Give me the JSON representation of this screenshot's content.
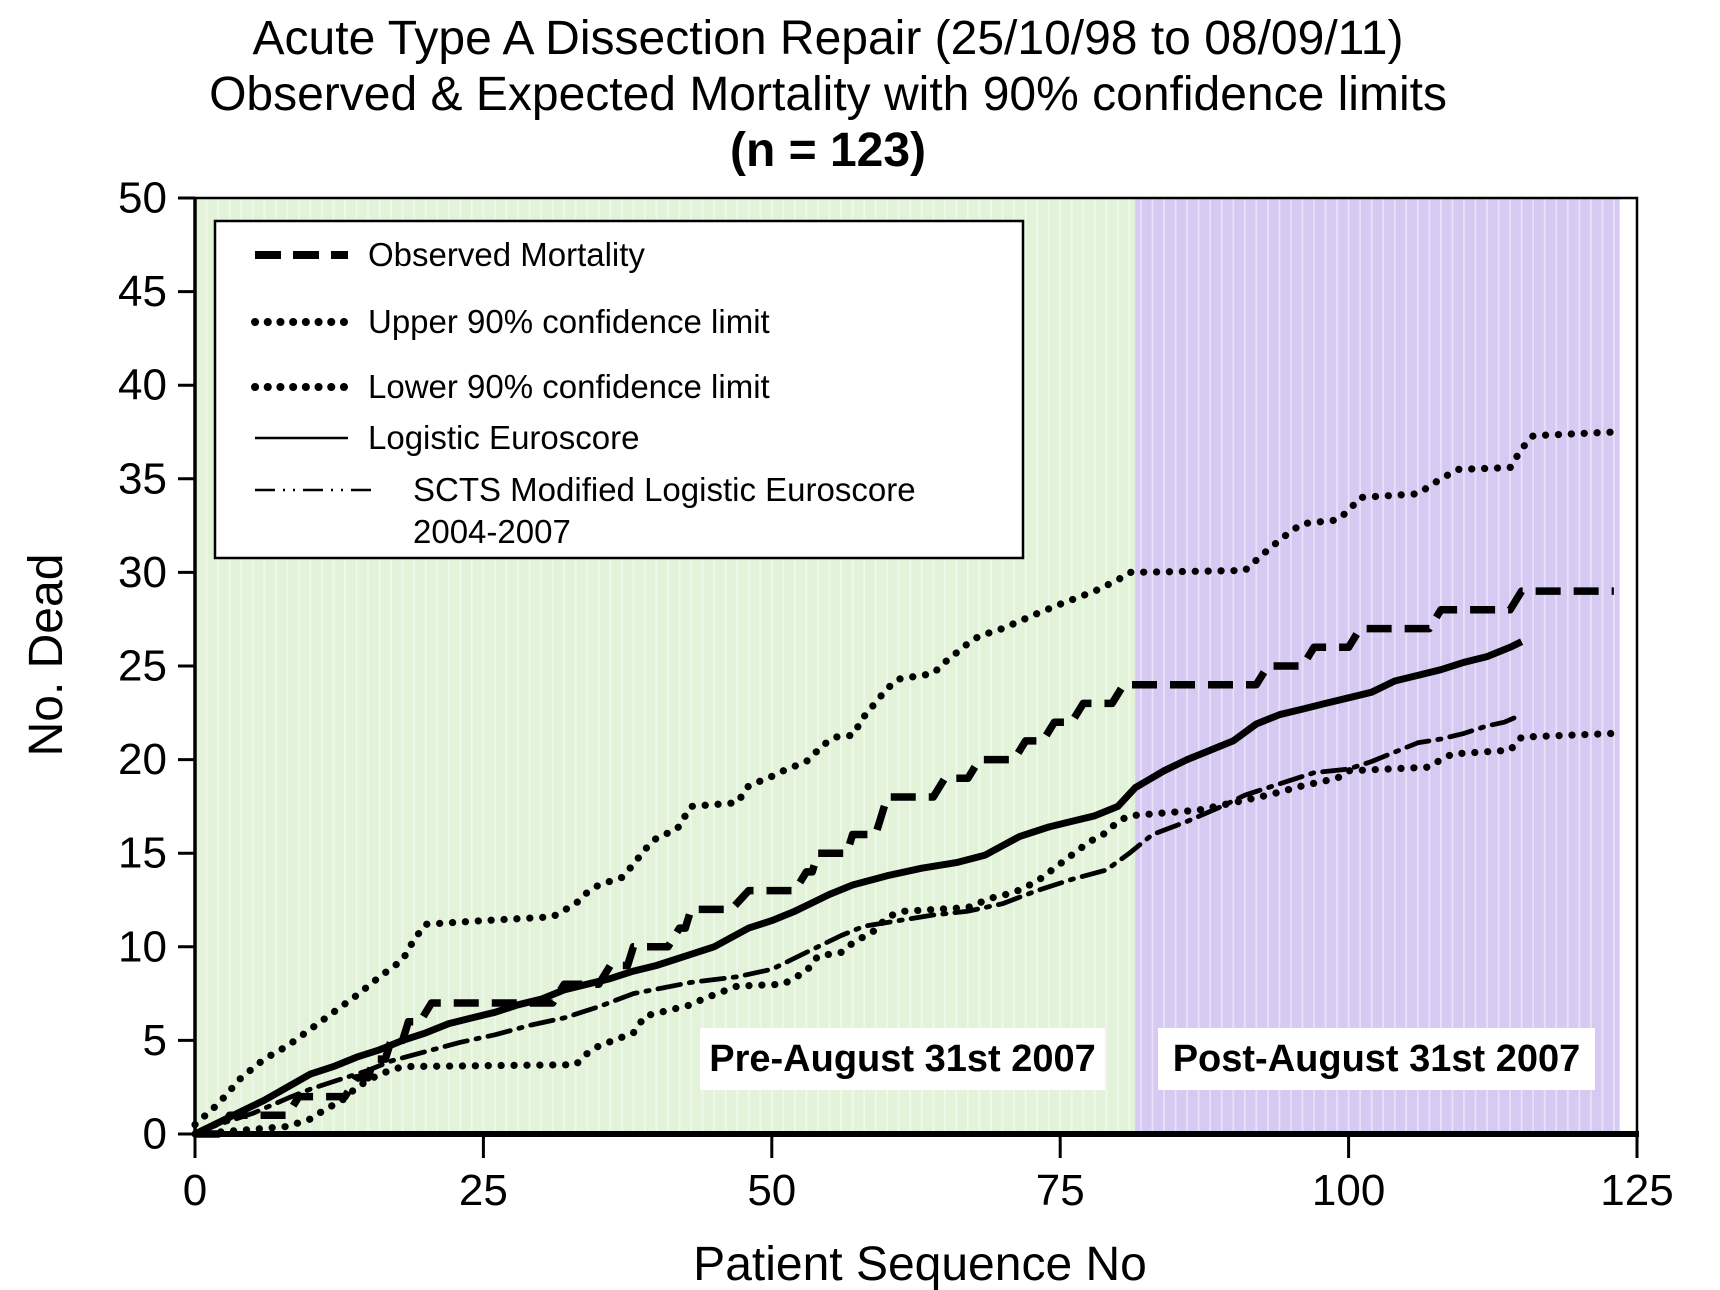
{
  "title": {
    "line1": "Acute Type A Dissection Repair (25/10/98 to 08/09/11)",
    "line2": "Observed & Expected Mortality with 90% confidence limits",
    "line3": "(n = 123)"
  },
  "colors": {
    "pre_band": "#e2f3da",
    "post_band": "#d6c9f2",
    "stripe": "rgba(255,255,255,0.45)",
    "line": "#000000",
    "label_box": "#ffffff"
  },
  "chart_data": {
    "type": "line",
    "title_lines": [
      "Acute Type A Dissection Repair (25/10/98 to 08/09/11)",
      "Observed & Expected Mortality with 90% confidence limits",
      "(n = 123)"
    ],
    "xlabel": "Patient Sequence No",
    "ylabel": "No. Dead",
    "xlim": [
      0,
      125
    ],
    "ylim": [
      0,
      50
    ],
    "x_ticks": [
      "0",
      "25",
      "50",
      "75",
      "100",
      "125"
    ],
    "x_tick_values": [
      0,
      25,
      50,
      75,
      100,
      125
    ],
    "y_ticks": [
      "0",
      "5",
      "10",
      "15",
      "20",
      "25",
      "30",
      "35",
      "40",
      "45",
      "50"
    ],
    "y_tick_values": [
      0,
      5,
      10,
      15,
      20,
      25,
      30,
      35,
      40,
      45,
      50
    ],
    "grid": "vertical-stripes-per-patient",
    "legend_position": "top-left",
    "regions": [
      {
        "key": "pre",
        "label": "Pre-August 31st 2007",
        "from": 0,
        "to": 81.5,
        "color": "#e2f3da"
      },
      {
        "key": "post",
        "label": "Post-August 31st 2007",
        "from": 81.5,
        "to": 123.5,
        "color": "#d6c9f2"
      }
    ],
    "series": [
      {
        "key": "upper",
        "name": "Upper 90% confidence limit",
        "style": "dotted",
        "points": [
          [
            0,
            0.5
          ],
          [
            2,
            1.6
          ],
          [
            4,
            3.0
          ],
          [
            6,
            4.0
          ],
          [
            8,
            4.7
          ],
          [
            10,
            5.6
          ],
          [
            12,
            6.5
          ],
          [
            14,
            7.4
          ],
          [
            16,
            8.4
          ],
          [
            18,
            9.3
          ],
          [
            19,
            10.4
          ],
          [
            20,
            11.2
          ],
          [
            25,
            11.4
          ],
          [
            31,
            11.6
          ],
          [
            33,
            12.3
          ],
          [
            34,
            12.9
          ],
          [
            35,
            13.3
          ],
          [
            37,
            13.7
          ],
          [
            38,
            14.4
          ],
          [
            39,
            15.2
          ],
          [
            40,
            15.8
          ],
          [
            41.8,
            16.3
          ],
          [
            43,
            17.5
          ],
          [
            47,
            17.7
          ],
          [
            48,
            18.6
          ],
          [
            50,
            19.1
          ],
          [
            51,
            19.4
          ],
          [
            53,
            19.9
          ],
          [
            54.5,
            20.8
          ],
          [
            55.5,
            21.2
          ],
          [
            57,
            21.3
          ],
          [
            58,
            22.3
          ],
          [
            60,
            23.8
          ],
          [
            61,
            24.3
          ],
          [
            64,
            24.6
          ],
          [
            65,
            25.2
          ],
          [
            67,
            26.2
          ],
          [
            68,
            26.6
          ],
          [
            70,
            27.0
          ],
          [
            73,
            27.8
          ],
          [
            75,
            28.3
          ],
          [
            78,
            29.0
          ],
          [
            80,
            29.6
          ],
          [
            81,
            30.0
          ],
          [
            91,
            30.1
          ],
          [
            93,
            31.2
          ],
          [
            95,
            32.2
          ],
          [
            96,
            32.6
          ],
          [
            99,
            32.8
          ],
          [
            100,
            33.3
          ],
          [
            101,
            34.0
          ],
          [
            106,
            34.2
          ],
          [
            108,
            35.0
          ],
          [
            109.5,
            35.5
          ],
          [
            114,
            35.6
          ],
          [
            115,
            36.6
          ],
          [
            116,
            37.3
          ],
          [
            123,
            37.5
          ]
        ]
      },
      {
        "key": "lower",
        "name": "Lower 90% confidence limit",
        "style": "dotted",
        "points": [
          [
            0,
            0
          ],
          [
            8,
            0.4
          ],
          [
            10,
            0.8
          ],
          [
            11,
            1.2
          ],
          [
            13,
            1.9
          ],
          [
            14,
            2.5
          ],
          [
            16,
            3.2
          ],
          [
            18,
            3.6
          ],
          [
            33,
            3.7
          ],
          [
            34,
            4.3
          ],
          [
            35,
            4.7
          ],
          [
            38,
            5.4
          ],
          [
            39,
            6.3
          ],
          [
            43,
            6.9
          ],
          [
            44,
            7.2
          ],
          [
            47,
            7.9
          ],
          [
            51,
            8.0
          ],
          [
            53,
            8.7
          ],
          [
            54,
            9.5
          ],
          [
            56,
            9.7
          ],
          [
            57,
            10.2
          ],
          [
            59,
            10.9
          ],
          [
            60,
            11.6
          ],
          [
            61.5,
            11.9
          ],
          [
            67,
            12.1
          ],
          [
            69,
            12.6
          ],
          [
            71,
            12.9
          ],
          [
            73,
            13.5
          ],
          [
            74.5,
            14.2
          ],
          [
            76,
            14.9
          ],
          [
            77.5,
            15.6
          ],
          [
            79,
            16.1
          ],
          [
            80,
            16.7
          ],
          [
            81,
            17.0
          ],
          [
            87,
            17.3
          ],
          [
            90,
            17.7
          ],
          [
            93,
            18.1
          ],
          [
            96,
            18.6
          ],
          [
            99,
            19.0
          ],
          [
            100,
            19.4
          ],
          [
            107,
            19.6
          ],
          [
            108,
            20.0
          ],
          [
            109,
            20.3
          ],
          [
            114,
            20.5
          ],
          [
            115,
            21.2
          ],
          [
            123,
            21.4
          ]
        ]
      },
      {
        "key": "scts",
        "name": "SCTS Modified Logistic Euroscore 2004-2007",
        "style": "dashdotdot",
        "points": [
          [
            0,
            0
          ],
          [
            2,
            0.5
          ],
          [
            5,
            1.1
          ],
          [
            8,
            1.9
          ],
          [
            10,
            2.4
          ],
          [
            13,
            3.0
          ],
          [
            15,
            3.4
          ],
          [
            17,
            3.9
          ],
          [
            20,
            4.4
          ],
          [
            23,
            4.9
          ],
          [
            26,
            5.3
          ],
          [
            29,
            5.8
          ],
          [
            32,
            6.2
          ],
          [
            35,
            6.8
          ],
          [
            38,
            7.5
          ],
          [
            43,
            8.1
          ],
          [
            47,
            8.4
          ],
          [
            50,
            8.8
          ],
          [
            53,
            9.7
          ],
          [
            56,
            10.6
          ],
          [
            58,
            11.1
          ],
          [
            61,
            11.4
          ],
          [
            64,
            11.7
          ],
          [
            67,
            11.9
          ],
          [
            70,
            12.3
          ],
          [
            73,
            13.0
          ],
          [
            76,
            13.6
          ],
          [
            79,
            14.1
          ],
          [
            81,
            15.0
          ],
          [
            83,
            16.0
          ],
          [
            86,
            16.7
          ],
          [
            89,
            17.5
          ],
          [
            91,
            18.1
          ],
          [
            94,
            18.7
          ],
          [
            97,
            19.3
          ],
          [
            100,
            19.5
          ],
          [
            102,
            19.9
          ],
          [
            104,
            20.4
          ],
          [
            106,
            20.9
          ],
          [
            108,
            21.1
          ],
          [
            110,
            21.4
          ],
          [
            112,
            21.8
          ],
          [
            113.5,
            22.0
          ],
          [
            115,
            22.4
          ]
        ]
      },
      {
        "key": "logistic",
        "name": "Logistic Euroscore",
        "style": "solid",
        "points": [
          [
            0,
            0
          ],
          [
            2,
            0.6
          ],
          [
            4,
            1.2
          ],
          [
            6,
            1.8
          ],
          [
            8,
            2.5
          ],
          [
            10,
            3.2
          ],
          [
            12,
            3.6
          ],
          [
            14,
            4.1
          ],
          [
            16,
            4.5
          ],
          [
            18,
            5.0
          ],
          [
            20,
            5.4
          ],
          [
            22,
            5.9
          ],
          [
            24,
            6.2
          ],
          [
            26,
            6.5
          ],
          [
            28,
            6.9
          ],
          [
            30,
            7.2
          ],
          [
            32,
            7.7
          ],
          [
            34,
            8.0
          ],
          [
            36,
            8.3
          ],
          [
            38,
            8.7
          ],
          [
            40,
            9.0
          ],
          [
            43,
            9.6
          ],
          [
            45,
            10.0
          ],
          [
            48,
            11.0
          ],
          [
            50,
            11.4
          ],
          [
            52,
            11.9
          ],
          [
            53,
            12.2
          ],
          [
            55,
            12.8
          ],
          [
            57,
            13.3
          ],
          [
            60,
            13.8
          ],
          [
            63,
            14.2
          ],
          [
            66,
            14.5
          ],
          [
            68.5,
            14.9
          ],
          [
            70,
            15.4
          ],
          [
            71.5,
            15.9
          ],
          [
            74,
            16.4
          ],
          [
            76,
            16.7
          ],
          [
            78,
            17.0
          ],
          [
            80,
            17.5
          ],
          [
            81.5,
            18.5
          ],
          [
            84,
            19.4
          ],
          [
            86,
            20.0
          ],
          [
            88,
            20.5
          ],
          [
            90,
            21.0
          ],
          [
            92,
            21.9
          ],
          [
            94,
            22.4
          ],
          [
            96,
            22.7
          ],
          [
            98,
            23.0
          ],
          [
            100,
            23.3
          ],
          [
            102,
            23.6
          ],
          [
            104,
            24.2
          ],
          [
            106,
            24.5
          ],
          [
            108,
            24.8
          ],
          [
            110,
            25.2
          ],
          [
            112,
            25.5
          ],
          [
            114,
            26.0
          ],
          [
            115,
            26.3
          ]
        ]
      },
      {
        "key": "observed",
        "name": "Observed Mortality",
        "style": "dashed",
        "points": [
          [
            0,
            0
          ],
          [
            2,
            0
          ],
          [
            3,
            1
          ],
          [
            8,
            1
          ],
          [
            9,
            2
          ],
          [
            13,
            2
          ],
          [
            14,
            3
          ],
          [
            15,
            3
          ],
          [
            15.5,
            4
          ],
          [
            16.5,
            4
          ],
          [
            17,
            5
          ],
          [
            18,
            5
          ],
          [
            18.5,
            6
          ],
          [
            19.5,
            6
          ],
          [
            20.5,
            7
          ],
          [
            31,
            7
          ],
          [
            32,
            8
          ],
          [
            35,
            8
          ],
          [
            36,
            9
          ],
          [
            37.5,
            9
          ],
          [
            38,
            10
          ],
          [
            41,
            10
          ],
          [
            42,
            11
          ],
          [
            42.5,
            11
          ],
          [
            43,
            12
          ],
          [
            46.5,
            12
          ],
          [
            48,
            13
          ],
          [
            52,
            13
          ],
          [
            53,
            14
          ],
          [
            53.5,
            14
          ],
          [
            54,
            15
          ],
          [
            56.5,
            15
          ],
          [
            57,
            16
          ],
          [
            59,
            16
          ],
          [
            59.5,
            17
          ],
          [
            60,
            18
          ],
          [
            64,
            18
          ],
          [
            65,
            19
          ],
          [
            67,
            19
          ],
          [
            68,
            20
          ],
          [
            71,
            20
          ],
          [
            72,
            21
          ],
          [
            73.5,
            21
          ],
          [
            74.5,
            22
          ],
          [
            76,
            22
          ],
          [
            77,
            23
          ],
          [
            79.5,
            23
          ],
          [
            80.5,
            24
          ],
          [
            92,
            24
          ],
          [
            93,
            25
          ],
          [
            96,
            25
          ],
          [
            97,
            26
          ],
          [
            100,
            26
          ],
          [
            101,
            27
          ],
          [
            107,
            27
          ],
          [
            108,
            28
          ],
          [
            114,
            28
          ],
          [
            115,
            29
          ],
          [
            123,
            29
          ]
        ]
      }
    ]
  },
  "legend": {
    "items": [
      {
        "series_key": "observed",
        "style": "dashed",
        "label_lines": [
          "Observed Mortality"
        ]
      },
      {
        "series_key": "upper",
        "style": "dotted",
        "label_lines": [
          "Upper 90% confidence limit"
        ]
      },
      {
        "series_key": "lower",
        "style": "dotted",
        "label_lines": [
          "Lower 90% confidence limit"
        ]
      },
      {
        "series_key": "logistic",
        "style": "solid-thin",
        "label_lines": [
          "Logistic Euroscore"
        ]
      },
      {
        "series_key": "scts",
        "style": "dashdotdot-thin",
        "label_lines": [
          "SCTS Modified Logistic Euroscore",
          "2004-2007"
        ]
      }
    ]
  },
  "region_labels": {
    "pre": "Pre-August 31st 2007",
    "post": "Post-August 31st 2007"
  }
}
